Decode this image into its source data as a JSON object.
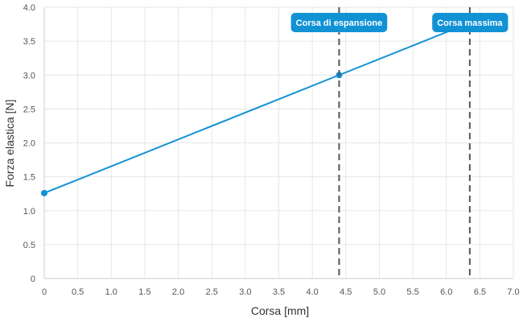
{
  "chart_data": {
    "type": "line",
    "title": "",
    "xlabel": "Corsa [mm]",
    "ylabel": "Forza elastica [N]",
    "xlim": [
      0,
      7
    ],
    "ylim": [
      0,
      4
    ],
    "x_ticks": [
      0,
      0.5,
      1,
      1.5,
      2,
      2.5,
      3,
      3.5,
      4,
      4.5,
      5,
      5.5,
      6,
      6.5,
      7
    ],
    "x_tick_labels": [
      "0",
      "0.5",
      "1.0",
      "1.5",
      "2.0",
      "2.5",
      "3.0",
      "3.5",
      "4.0",
      "4.5",
      "5.0",
      "5.5",
      "6.0",
      "6.5",
      "7.0"
    ],
    "y_ticks": [
      0,
      0.5,
      1,
      1.5,
      2,
      2.5,
      3,
      3.5,
      4
    ],
    "y_tick_labels": [
      "0",
      "0.5",
      "1.0",
      "1.5",
      "2.0",
      "2.5",
      "3.0",
      "3.5",
      "4.0"
    ],
    "grid": true,
    "series": [
      {
        "color": "#1192d5",
        "x": [
          0,
          4.4,
          6.35
        ],
        "y": [
          1.26,
          3.0,
          3.77
        ],
        "marker_indices": [
          0,
          1
        ]
      }
    ],
    "markers": [
      {
        "x": 4.4,
        "label": "Corsa di espansione",
        "color": "#1192d5"
      },
      {
        "x": 6.35,
        "label": "Corsa massima",
        "color": "#1192d5"
      }
    ]
  }
}
